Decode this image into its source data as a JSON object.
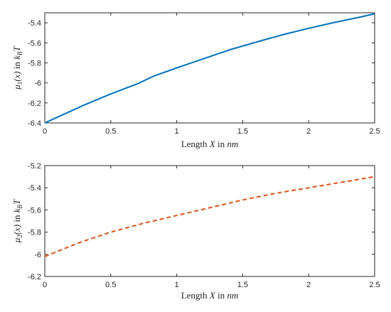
{
  "chart_data": [
    {
      "type": "line",
      "title": "",
      "xlabel": {
        "pre": "Length ",
        "var": "X",
        "mid": " in ",
        "unit": "nm"
      },
      "ylabel": {
        "mu": "μ",
        "sub": "1",
        "arg": "(x)",
        "mid": " in ",
        "k": "k",
        "ksub": "B",
        "T": "T"
      },
      "xlim": [
        0,
        2.5
      ],
      "ylim": [
        -6.4,
        -5.3
      ],
      "xticks": [
        0,
        0.5,
        1,
        1.5,
        2,
        2.5
      ],
      "xtick_labels": [
        "0",
        "0.5",
        "1",
        "1.5",
        "2",
        "2.5"
      ],
      "yticks": [
        -6.4,
        -6.2,
        -6.0,
        -5.8,
        -5.6,
        -5.4
      ],
      "ytick_labels": [
        "-6.4",
        "-6.2",
        "-6",
        "-5.8",
        "-5.6",
        "-5.4"
      ],
      "grid": false,
      "series": [
        {
          "line_style": "solid",
          "color": "#0072BD",
          "x": [
            0,
            0.1,
            0.2,
            0.3,
            0.4,
            0.5,
            0.6,
            0.7,
            0.83,
            1.0,
            1.2,
            1.4,
            1.65,
            1.8,
            2.0,
            2.2,
            2.4,
            2.5
          ],
          "y": [
            -6.4,
            -6.34,
            -6.28,
            -6.22,
            -6.165,
            -6.11,
            -6.06,
            -6.01,
            -5.93,
            -5.85,
            -5.76,
            -5.67,
            -5.575,
            -5.52,
            -5.455,
            -5.395,
            -5.34,
            -5.31
          ]
        }
      ]
    },
    {
      "type": "line",
      "title": "",
      "xlabel": {
        "pre": "Length ",
        "var": "X",
        "mid": " in ",
        "unit": "nm"
      },
      "ylabel": {
        "mu": "μ",
        "sub": "2",
        "arg": "(x)",
        "mid": " in ",
        "k": "k",
        "ksub": "B",
        "T": "T"
      },
      "xlim": [
        0,
        2.5
      ],
      "ylim": [
        -6.2,
        -5.2
      ],
      "xticks": [
        0,
        0.5,
        1,
        1.5,
        2,
        2.5
      ],
      "xtick_labels": [
        "0",
        "0.5",
        "1",
        "1.5",
        "2",
        "2.5"
      ],
      "yticks": [
        -6.2,
        -6.0,
        -5.8,
        -5.6,
        -5.4,
        -5.2
      ],
      "ytick_labels": [
        "-6.2",
        "-6",
        "-5.8",
        "-5.6",
        "-5.4",
        "-5.2"
      ],
      "grid": false,
      "series": [
        {
          "line_style": "dashed",
          "color": "#D95319",
          "x": [
            0,
            0.25,
            0.5,
            0.75,
            1.0,
            1.25,
            1.5,
            1.75,
            2.0,
            2.25,
            2.5
          ],
          "y": [
            -6.02,
            -5.9,
            -5.8,
            -5.72,
            -5.65,
            -5.58,
            -5.51,
            -5.45,
            -5.4,
            -5.35,
            -5.3
          ]
        }
      ]
    }
  ]
}
